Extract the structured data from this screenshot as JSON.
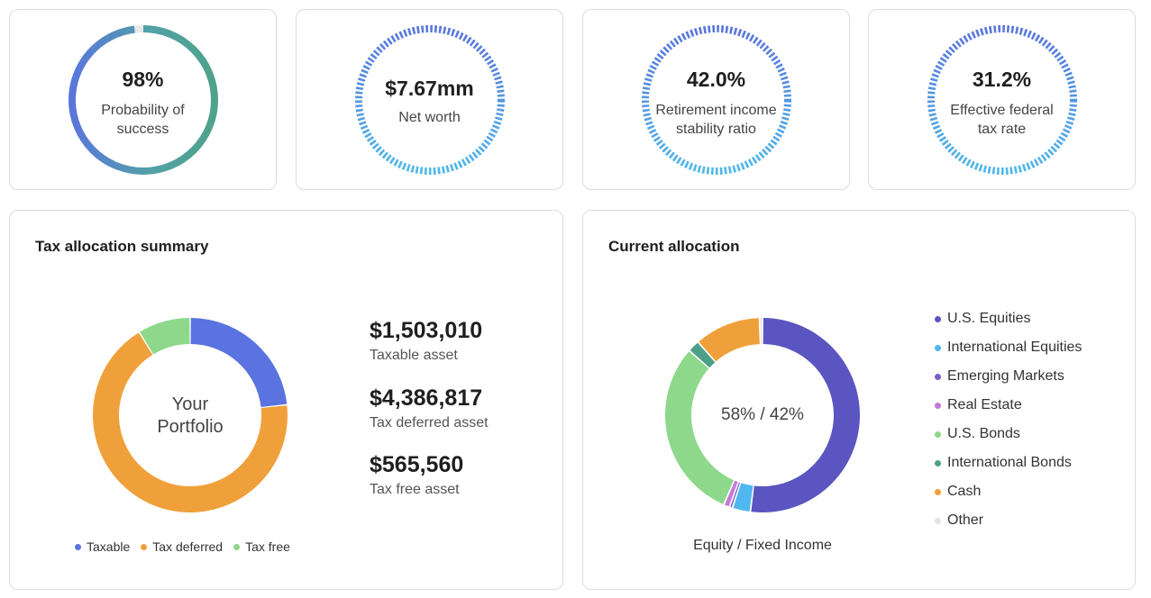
{
  "metrics": [
    {
      "value": "98%",
      "label_line1": "Probability of",
      "label_line2": "success",
      "fraction": 0.98
    },
    {
      "value": "$7.67mm",
      "label_line1": "Net worth",
      "label_line2": ""
    },
    {
      "value": "42.0%",
      "label_line1": "Retirement income",
      "label_line2": "stability ratio"
    },
    {
      "value": "31.2%",
      "label_line1": "Effective federal",
      "label_line2": "tax rate"
    }
  ],
  "tax_allocation": {
    "title": "Tax allocation summary",
    "center_line1": "Your",
    "center_line2": "Portfolio",
    "items": [
      {
        "amount": "$1,503,010",
        "label": "Taxable asset"
      },
      {
        "amount": "$4,386,817",
        "label": "Tax deferred asset"
      },
      {
        "amount": "$565,560",
        "label": "Tax free asset"
      }
    ],
    "legend": [
      {
        "label": "Taxable",
        "color": "#5b73e0"
      },
      {
        "label": "Tax deferred",
        "color": "#f0a03a"
      },
      {
        "label": "Tax free",
        "color": "#8dd88a"
      }
    ]
  },
  "current_allocation": {
    "title": "Current allocation",
    "center_text": "58% / 42%",
    "caption": "Equity / Fixed Income",
    "legend": [
      {
        "label": "U.S. Equities",
        "color": "#5a55c0"
      },
      {
        "label": "International Equities",
        "color": "#4fb8f0"
      },
      {
        "label": "Emerging Markets",
        "color": "#7a5cc8"
      },
      {
        "label": "Real Estate",
        "color": "#c27ad8"
      },
      {
        "label": "U.S. Bonds",
        "color": "#8dd88a"
      },
      {
        "label": "International Bonds",
        "color": "#4e9f88"
      },
      {
        "label": "Cash",
        "color": "#f0a03a"
      },
      {
        "label": "Other",
        "color": "#e3e3e6"
      }
    ]
  },
  "chart_data": [
    {
      "type": "pie",
      "categories": [
        "Taxable",
        "Tax deferred",
        "Tax free"
      ],
      "values": [
        1503010,
        4386817,
        565560
      ]
    },
    {
      "type": "pie",
      "categories": [
        "U.S. Equities",
        "International Equities",
        "Emerging Markets",
        "Real Estate",
        "U.S. Bonds",
        "International Bonds",
        "Cash",
        "Other"
      ],
      "values": [
        52,
        3,
        0.5,
        1,
        30,
        2,
        11,
        0.5
      ]
    }
  ]
}
